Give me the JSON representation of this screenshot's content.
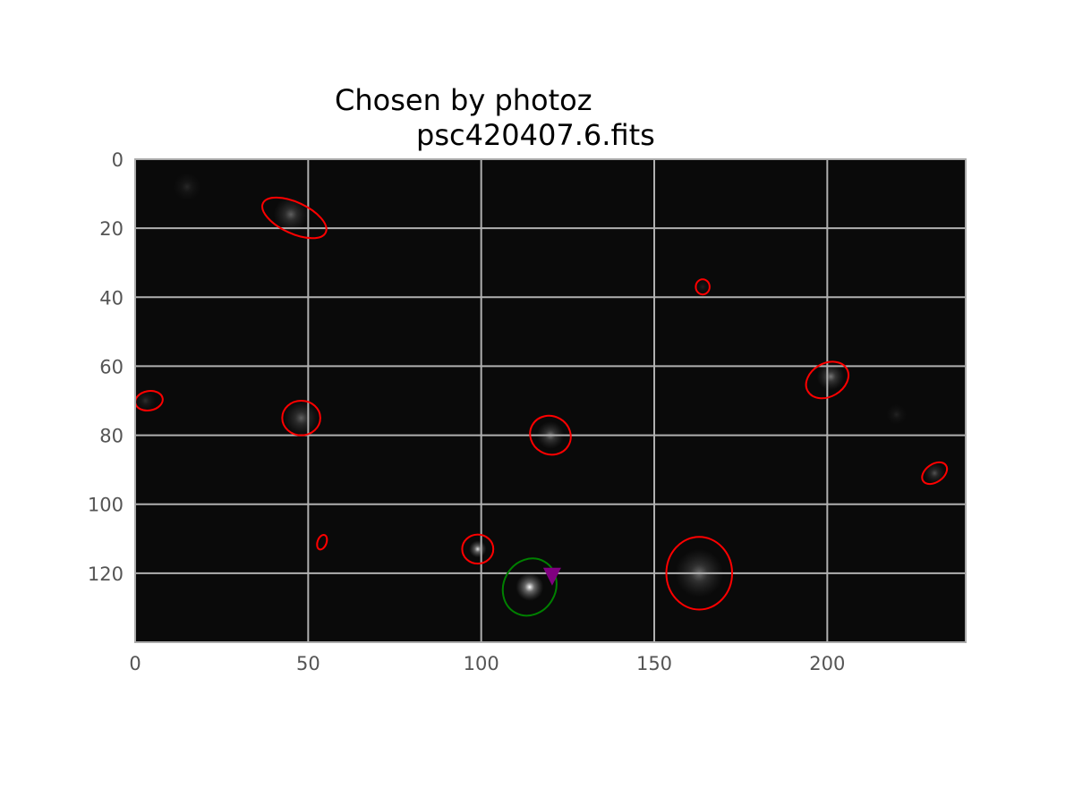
{
  "title_lines": [
    "Chosen by photoz",
    "psc420407.6.fits"
  ],
  "chart_data": {
    "type": "scatter",
    "title": "Chosen by photoz\npsc420407.6.fits",
    "xlabel": "",
    "ylabel": "",
    "xlim": [
      0,
      240
    ],
    "ylim": [
      140,
      0
    ],
    "xticks": [
      0,
      50,
      100,
      150,
      200
    ],
    "yticks": [
      0,
      20,
      40,
      60,
      80,
      100,
      120
    ],
    "grid": true,
    "image_background": "#0a0a0a",
    "sources": [
      {
        "x": 15,
        "y": 8,
        "brightness": 0.12,
        "spread": 4
      },
      {
        "x": 45,
        "y": 16,
        "brightness": 0.35,
        "spread": 5
      },
      {
        "x": 48,
        "y": 75,
        "brightness": 0.35,
        "spread": 5
      },
      {
        "x": 3,
        "y": 70,
        "brightness": 0.15,
        "spread": 3
      },
      {
        "x": 99,
        "y": 113,
        "brightness": 0.9,
        "spread": 2.5
      },
      {
        "x": 114,
        "y": 124,
        "brightness": 1.0,
        "spread": 4
      },
      {
        "x": 120,
        "y": 80,
        "brightness": 0.45,
        "spread": 4
      },
      {
        "x": 163,
        "y": 120,
        "brightness": 0.4,
        "spread": 7
      },
      {
        "x": 201,
        "y": 63,
        "brightness": 0.45,
        "spread": 4
      },
      {
        "x": 231,
        "y": 91,
        "brightness": 0.3,
        "spread": 3
      },
      {
        "x": 220,
        "y": 74,
        "brightness": 0.1,
        "spread": 3
      },
      {
        "x": 164,
        "y": 37,
        "brightness": 0.1,
        "spread": 2
      }
    ],
    "ellipses": [
      {
        "name": "detection",
        "x": 46,
        "y": 17,
        "rx": 10,
        "ry": 4.5,
        "angle": 25,
        "color": "#ff0000"
      },
      {
        "name": "detection",
        "x": 164,
        "y": 37,
        "rx": 2,
        "ry": 2.2,
        "angle": 0,
        "color": "#ff0000"
      },
      {
        "name": "detection",
        "x": 200,
        "y": 64,
        "rx": 6.5,
        "ry": 4.8,
        "angle": -30,
        "color": "#ff0000"
      },
      {
        "name": "detection",
        "x": 4,
        "y": 70,
        "rx": 4,
        "ry": 2.8,
        "angle": -10,
        "color": "#ff0000"
      },
      {
        "name": "detection",
        "x": 48,
        "y": 75,
        "rx": 5.5,
        "ry": 5,
        "angle": 0,
        "color": "#ff0000"
      },
      {
        "name": "detection",
        "x": 120,
        "y": 80,
        "rx": 6,
        "ry": 5.5,
        "angle": 30,
        "color": "#ff0000"
      },
      {
        "name": "detection",
        "x": 231,
        "y": 91,
        "rx": 4,
        "ry": 2.6,
        "angle": -35,
        "color": "#ff0000"
      },
      {
        "name": "detection",
        "x": 54,
        "y": 111,
        "rx": 1.3,
        "ry": 2.2,
        "angle": 20,
        "color": "#ff0000"
      },
      {
        "name": "detection",
        "x": 99,
        "y": 113,
        "rx": 4.5,
        "ry": 4.2,
        "angle": 0,
        "color": "#ff0000"
      },
      {
        "name": "detection",
        "x": 163,
        "y": 120,
        "rx": 9.5,
        "ry": 10.5,
        "angle": 0,
        "color": "#ff0000"
      },
      {
        "name": "chosen",
        "x": 114,
        "y": 124,
        "rx": 7.5,
        "ry": 8.5,
        "angle": 30,
        "color": "#008000"
      }
    ],
    "markers": [
      {
        "name": "target",
        "x": 120.5,
        "y": 121,
        "shape": "triangle-down",
        "color": "#800080"
      }
    ]
  }
}
